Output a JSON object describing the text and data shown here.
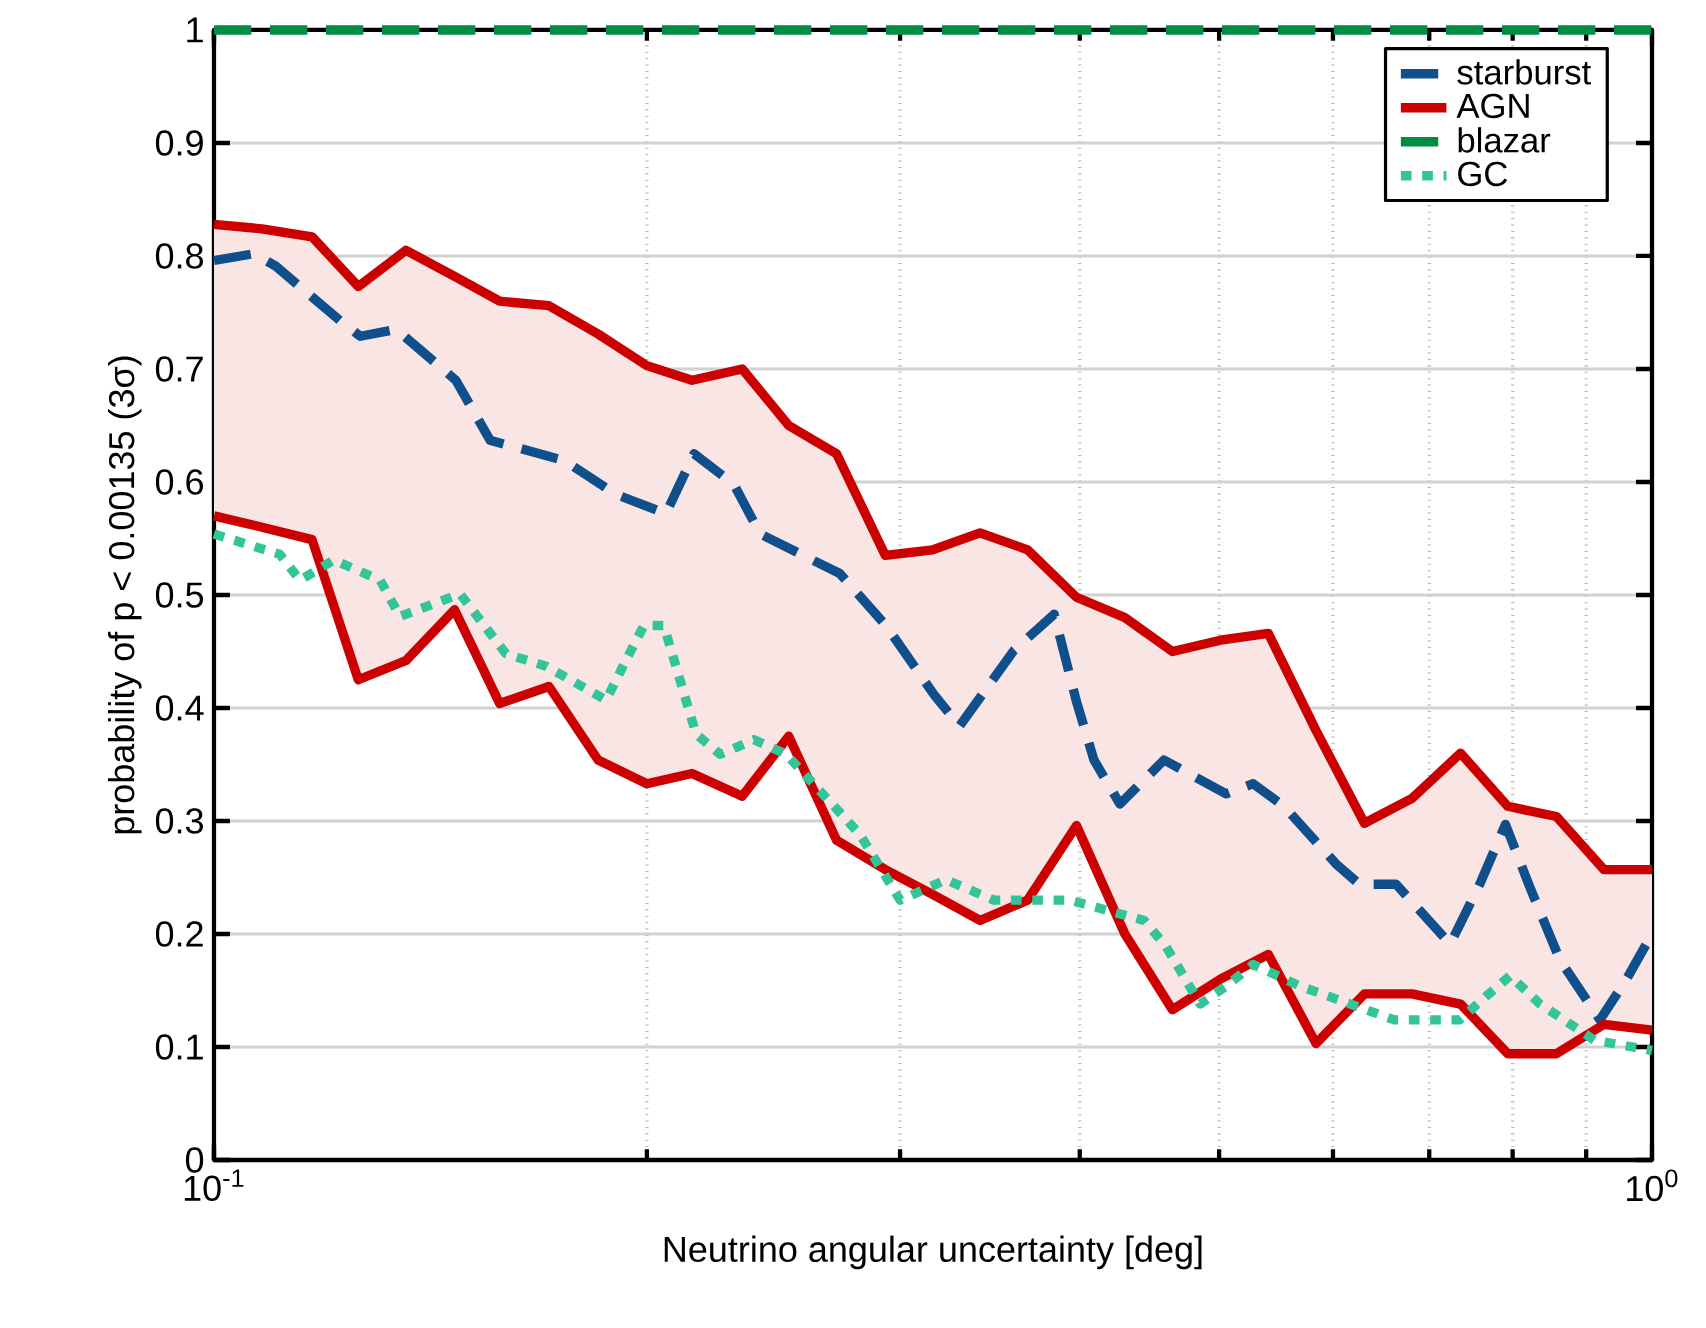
{
  "chart_data": {
    "type": "line",
    "xlabel": "Neutrino angular uncertainty [deg]",
    "ylabel": "probability of p < 0.00135  (3σ)",
    "log": "x",
    "xlim": [
      0.1,
      1
    ],
    "ylim": [
      0,
      1
    ],
    "xticks": [
      {
        "value": 0.1,
        "label": "10$^{-1}$"
      },
      {
        "value": 1,
        "label": "10$^{0}$"
      }
    ],
    "yticks": [
      0,
      0.1,
      0.2,
      0.3,
      0.4,
      0.5,
      0.6,
      0.7,
      0.8,
      0.9,
      1
    ],
    "grid": true,
    "legend": "top right",
    "marker": "none",
    "series": [
      {
        "name": "starburst",
        "color": "#0e4f8c",
        "line_style": "dashed",
        "x": [
          0.1,
          0.1066,
          0.1104,
          0.1223,
          0.1264,
          0.1339,
          0.1473,
          0.1556,
          0.1752,
          0.1904,
          0.2062,
          0.2157,
          0.2299,
          0.2398,
          0.2724,
          0.2933,
          0.3167,
          0.33,
          0.36,
          0.384,
          0.3977,
          0.4092,
          0.4266,
          0.4578,
          0.5057,
          0.528,
          0.5548,
          0.603,
          0.626,
          0.664,
          0.724,
          0.759,
          0.791,
          0.822,
          0.863,
          0.92,
          0.959,
          1.0
        ],
        "values": [
          0.796,
          0.802,
          0.791,
          0.743,
          0.729,
          0.735,
          0.69,
          0.637,
          0.619,
          0.589,
          0.572,
          0.625,
          0.598,
          0.554,
          0.519,
          0.473,
          0.412,
          0.384,
          0.451,
          0.483,
          0.407,
          0.354,
          0.315,
          0.354,
          0.324,
          0.333,
          0.313,
          0.262,
          0.244,
          0.244,
          0.191,
          0.244,
          0.297,
          0.242,
          0.177,
          0.124,
          0.159,
          0.2
        ]
      },
      {
        "name": "AGN",
        "color": "#cc0000",
        "line_style": "solid",
        "values": [
          0.828,
          0.824,
          0.817,
          0.773,
          0.805,
          0.782,
          0.76,
          0.756,
          0.731,
          0.703,
          0.69,
          0.7,
          0.65,
          0.625,
          0.535,
          0.54,
          0.555,
          0.54,
          0.498,
          0.48,
          0.45,
          0.46,
          0.466,
          0.38,
          0.298,
          0.32,
          0.36,
          0.313,
          0.304,
          0.257,
          0.257
        ],
        "x": [
          0.1,
          0.108,
          0.117,
          0.126,
          0.136,
          0.147,
          0.158,
          0.171,
          0.185,
          0.2,
          0.215,
          0.233,
          0.251,
          0.271,
          0.293,
          0.316,
          0.341,
          0.368,
          0.398,
          0.43,
          0.464,
          0.501,
          0.541,
          0.584,
          0.631,
          0.681,
          0.736,
          0.794,
          0.858,
          0.926,
          1.0
        ],
        "upper": [
          0.828,
          0.824,
          0.817,
          0.773,
          0.805,
          0.782,
          0.76,
          0.756,
          0.731,
          0.703,
          0.69,
          0.7,
          0.65,
          0.625,
          0.535,
          0.54,
          0.555,
          0.54,
          0.498,
          0.48,
          0.45,
          0.46,
          0.466,
          0.38,
          0.298,
          0.32,
          0.36,
          0.313,
          0.304,
          0.257,
          0.257
        ],
        "lower": [
          0.57,
          0.56,
          0.549,
          0.425,
          0.442,
          0.487,
          0.404,
          0.419,
          0.354,
          0.333,
          0.342,
          0.322,
          0.375,
          0.283,
          0.257,
          0.235,
          0.212,
          0.23,
          0.296,
          0.2,
          0.133,
          0.16,
          0.182,
          0.103,
          0.147,
          0.147,
          0.138,
          0.094,
          0.094,
          0.12,
          0.115
        ]
      },
      {
        "color": "#cc0000",
        "line_style": "solid",
        "x": [
          0.1,
          0.108,
          0.117,
          0.126,
          0.136,
          0.147,
          0.158,
          0.171,
          0.185,
          0.2,
          0.215,
          0.233,
          0.251,
          0.271,
          0.293,
          0.316,
          0.341,
          0.368,
          0.398,
          0.43,
          0.464,
          0.501,
          0.541,
          0.584,
          0.631,
          0.681,
          0.736,
          0.794,
          0.858,
          0.926,
          1.0
        ],
        "values": [
          0.57,
          0.56,
          0.549,
          0.425,
          0.442,
          0.487,
          0.404,
          0.419,
          0.354,
          0.333,
          0.342,
          0.322,
          0.375,
          0.283,
          0.257,
          0.235,
          0.212,
          0.23,
          0.296,
          0.2,
          0.133,
          0.16,
          0.182,
          0.103,
          0.147,
          0.147,
          0.138,
          0.094,
          0.094,
          0.12,
          0.115
        ]
      },
      {
        "name": "blazar",
        "color": "#008c45",
        "line_style": "dashed",
        "x": [
          0.1,
          1.0
        ],
        "values": [
          1,
          1
        ]
      },
      {
        "name": "GC",
        "color": "#33c49a",
        "line_style": "dotted",
        "x": [
          0.1,
          0.1111,
          0.1148,
          0.1212,
          0.1305,
          0.1347,
          0.1483,
          0.1596,
          0.1702,
          0.1874,
          0.1934,
          0.1991,
          0.2055,
          0.2164,
          0.2249,
          0.2375,
          0.25,
          0.2814,
          0.3,
          0.323,
          0.3486,
          0.3938,
          0.4435,
          0.4592,
          0.4851,
          0.5057,
          0.528,
          0.569,
          0.662,
          0.735,
          0.767,
          0.797,
          0.836,
          0.912,
          1.0
        ],
        "values": [
          0.554,
          0.536,
          0.513,
          0.531,
          0.513,
          0.481,
          0.501,
          0.448,
          0.437,
          0.407,
          0.442,
          0.473,
          0.473,
          0.377,
          0.359,
          0.372,
          0.359,
          0.288,
          0.23,
          0.248,
          0.23,
          0.23,
          0.212,
          0.189,
          0.138,
          0.154,
          0.173,
          0.154,
          0.124,
          0.124,
          0.145,
          0.163,
          0.138,
          0.106,
          0.097
        ]
      }
    ]
  }
}
